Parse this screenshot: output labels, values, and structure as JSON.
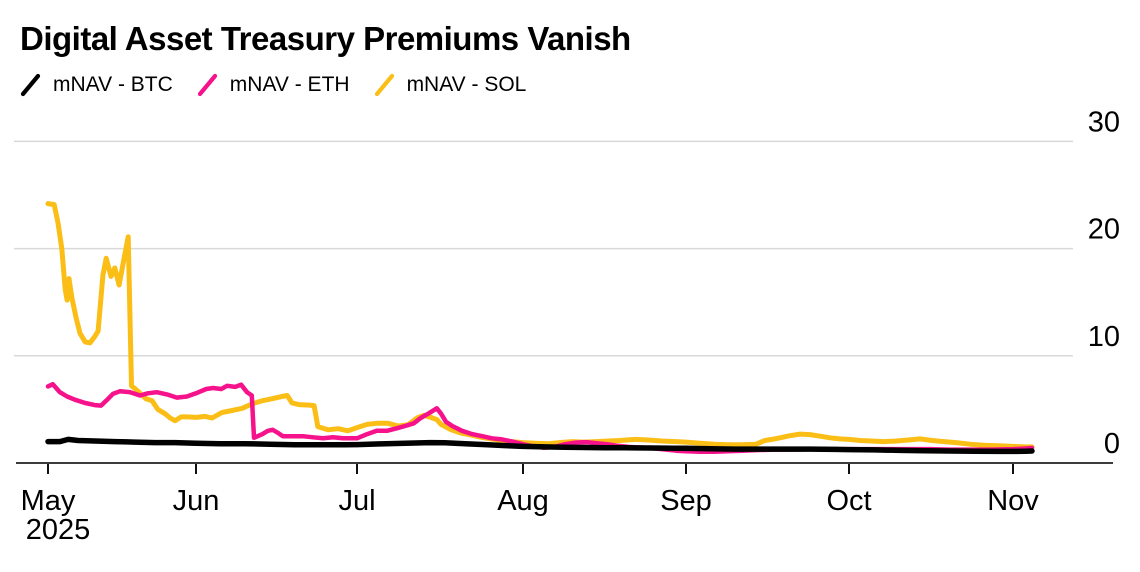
{
  "title": "Digital Asset Treasury Premiums Vanish",
  "legend": [
    {
      "label": "mNAV - BTC",
      "color": "#000000"
    },
    {
      "label": "mNAV - ETH",
      "color": "#f5128b"
    },
    {
      "label": "mNAV - SOL",
      "color": "#fbbe17"
    }
  ],
  "colors": {
    "background": "#ffffff",
    "gridline": "#d9d9d9",
    "axis_line": "#3c3c3c",
    "tick_mark": "#111111",
    "text": "#000000"
  },
  "chart_data": {
    "type": "line",
    "title": "Digital Asset Treasury Premiums Vanish",
    "x_axis": {
      "tick_labels": [
        "May",
        "Jun",
        "Jul",
        "Aug",
        "Sep",
        "Oct",
        "Nov"
      ],
      "year_label": "2025",
      "tick_days": [
        0,
        31,
        61,
        92,
        123,
        153,
        184
      ],
      "start_date": "2025-05-01",
      "end_date": "2025-11-04",
      "grid": false
    },
    "y_axis": {
      "ticks": [
        0,
        10,
        20,
        30
      ],
      "range": [
        0,
        30
      ],
      "side": "right",
      "grid": true
    },
    "legend_position": "top-left",
    "series": [
      {
        "name": "mNAV - BTC",
        "color": "#000000",
        "stroke_width": 5.5,
        "points": [
          [
            0,
            2
          ],
          [
            2.5,
            2
          ],
          [
            4.2,
            2.2
          ],
          [
            6.3,
            2.1
          ],
          [
            9.8,
            2.05
          ],
          [
            14,
            2
          ],
          [
            18.2,
            1.95
          ],
          [
            22.4,
            1.9
          ],
          [
            26.6,
            1.9
          ],
          [
            31,
            1.85
          ],
          [
            35.5,
            1.8
          ],
          [
            40.1,
            1.8
          ],
          [
            44.8,
            1.75
          ],
          [
            49.4,
            1.7
          ],
          [
            54.1,
            1.7
          ],
          [
            58.8,
            1.7
          ],
          [
            61,
            1.72
          ],
          [
            65.3,
            1.78
          ],
          [
            70,
            1.85
          ],
          [
            74.6,
            1.9
          ],
          [
            77.4,
            1.88
          ],
          [
            81.2,
            1.8
          ],
          [
            84.9,
            1.72
          ],
          [
            88.7,
            1.62
          ],
          [
            92,
            1.55
          ],
          [
            96.2,
            1.5
          ],
          [
            100,
            1.47
          ],
          [
            103.8,
            1.45
          ],
          [
            107.6,
            1.42
          ],
          [
            111.4,
            1.42
          ],
          [
            116.2,
            1.4
          ],
          [
            120.9,
            1.38
          ],
          [
            123,
            1.38
          ],
          [
            127.4,
            1.32
          ],
          [
            132,
            1.3
          ],
          [
            136.6,
            1.3
          ],
          [
            141.2,
            1.3
          ],
          [
            145.8,
            1.3
          ],
          [
            150.4,
            1.27
          ],
          [
            153,
            1.25
          ],
          [
            157.9,
            1.22
          ],
          [
            162.6,
            1.18
          ],
          [
            167.4,
            1.15
          ],
          [
            172.1,
            1.12
          ],
          [
            176.8,
            1.1
          ],
          [
            181.5,
            1.08
          ],
          [
            184,
            1.08
          ],
          [
            186.3,
            1.1
          ],
          [
            187.6,
            1.12
          ]
        ]
      },
      {
        "name": "mNAV - ETH",
        "color": "#f5128b",
        "stroke_width": 4.5,
        "points": [
          [
            0,
            7.15
          ],
          [
            1,
            7.35
          ],
          [
            2.5,
            6.6
          ],
          [
            4,
            6.2
          ],
          [
            5.7,
            5.9
          ],
          [
            7.8,
            5.6
          ],
          [
            9.8,
            5.4
          ],
          [
            11.1,
            5.35
          ],
          [
            12.6,
            6
          ],
          [
            13.6,
            6.45
          ],
          [
            15.1,
            6.7
          ],
          [
            17.2,
            6.6
          ],
          [
            19.3,
            6.3
          ],
          [
            20.9,
            6.5
          ],
          [
            22.8,
            6.6
          ],
          [
            24.9,
            6.4
          ],
          [
            27,
            6.1
          ],
          [
            29.1,
            6.2
          ],
          [
            31,
            6.5
          ],
          [
            32.9,
            6.9
          ],
          [
            34.2,
            7
          ],
          [
            35.7,
            6.9
          ],
          [
            36.8,
            7.2
          ],
          [
            38.3,
            7.1
          ],
          [
            39.4,
            7.3
          ],
          [
            40.5,
            6.6
          ],
          [
            41.4,
            6.3
          ],
          [
            41.8,
            2.35
          ],
          [
            42.5,
            2.5
          ],
          [
            43.4,
            2.7
          ],
          [
            44.4,
            3
          ],
          [
            45.3,
            3.1
          ],
          [
            46.3,
            2.8
          ],
          [
            47.2,
            2.5
          ],
          [
            49.1,
            2.5
          ],
          [
            50.9,
            2.5
          ],
          [
            52.8,
            2.4
          ],
          [
            54.7,
            2.3
          ],
          [
            56.5,
            2.4
          ],
          [
            58.4,
            2.3
          ],
          [
            61,
            2.3
          ],
          [
            62.9,
            2.7
          ],
          [
            64.7,
            3
          ],
          [
            66.6,
            3
          ],
          [
            68.5,
            3.25
          ],
          [
            70.3,
            3.5
          ],
          [
            71.6,
            3.7
          ],
          [
            72.9,
            4.2
          ],
          [
            74.3,
            4.6
          ],
          [
            75.9,
            5.1
          ],
          [
            76.7,
            4.6
          ],
          [
            77.6,
            3.85
          ],
          [
            78.8,
            3.45
          ],
          [
            80.6,
            3
          ],
          [
            82.5,
            2.7
          ],
          [
            84.4,
            2.5
          ],
          [
            86.2,
            2.3
          ],
          [
            88.1,
            2.2
          ],
          [
            90,
            2
          ],
          [
            92,
            1.75
          ],
          [
            94,
            1.55
          ],
          [
            96,
            1.42
          ],
          [
            98,
            1.5
          ],
          [
            100,
            1.75
          ],
          [
            102,
            1.9
          ],
          [
            104,
            1.95
          ],
          [
            106,
            1.85
          ],
          [
            108,
            1.75
          ],
          [
            110,
            1.6
          ],
          [
            112,
            1.5
          ],
          [
            114,
            1.45
          ],
          [
            116,
            1.4
          ],
          [
            118.4,
            1.3
          ],
          [
            121.1,
            1.15
          ],
          [
            123,
            1.1
          ],
          [
            125.6,
            1.05
          ],
          [
            128.2,
            1.05
          ],
          [
            130.7,
            1.1
          ],
          [
            133.3,
            1.15
          ],
          [
            135.9,
            1.2
          ],
          [
            139.4,
            1.25
          ],
          [
            143.1,
            1.25
          ],
          [
            146.8,
            1.3
          ],
          [
            150.4,
            1.3
          ],
          [
            153,
            1.3
          ],
          [
            157,
            1.3
          ],
          [
            160.8,
            1.3
          ],
          [
            164.5,
            1.3
          ],
          [
            168.3,
            1.3
          ],
          [
            172.1,
            1.25
          ],
          [
            175.9,
            1.25
          ],
          [
            179.7,
            1.25
          ],
          [
            184,
            1.3
          ],
          [
            186.3,
            1.35
          ],
          [
            187.6,
            1.4
          ]
        ]
      },
      {
        "name": "mNAV - SOL",
        "color": "#fbbe17",
        "stroke_width": 5,
        "points": [
          [
            0,
            24.2
          ],
          [
            1.3,
            24.1
          ],
          [
            2.1,
            22.4
          ],
          [
            2.9,
            20
          ],
          [
            3.6,
            16.2
          ],
          [
            4,
            15.2
          ],
          [
            4.4,
            17.2
          ],
          [
            5,
            15.4
          ],
          [
            5.9,
            13.5
          ],
          [
            6.7,
            12.1
          ],
          [
            7.8,
            11.3
          ],
          [
            8.8,
            11.2
          ],
          [
            9.8,
            11.8
          ],
          [
            10.5,
            12.3
          ],
          [
            11.5,
            17.5
          ],
          [
            12.2,
            19.1
          ],
          [
            13.2,
            17.4
          ],
          [
            14,
            18.2
          ],
          [
            14.9,
            16.6
          ],
          [
            15.9,
            19
          ],
          [
            16.8,
            21.1
          ],
          [
            17.5,
            7.2
          ],
          [
            18.3,
            6.9
          ],
          [
            19.3,
            6.5
          ],
          [
            20.5,
            6
          ],
          [
            21.8,
            5.8
          ],
          [
            23,
            5
          ],
          [
            24.5,
            4.6
          ],
          [
            25.6,
            4.2
          ],
          [
            26.6,
            3.95
          ],
          [
            27.9,
            4.3
          ],
          [
            29.3,
            4.3
          ],
          [
            31,
            4.25
          ],
          [
            32.7,
            4.35
          ],
          [
            34,
            4.2
          ],
          [
            35.8,
            4.7
          ],
          [
            37.7,
            4.9
          ],
          [
            39.6,
            5.1
          ],
          [
            41.4,
            5.5
          ],
          [
            43.3,
            5.8
          ],
          [
            45.2,
            6
          ],
          [
            47,
            6.2
          ],
          [
            48,
            6.3
          ],
          [
            48.9,
            5.6
          ],
          [
            50.2,
            5.45
          ],
          [
            52.1,
            5.4
          ],
          [
            53,
            5.35
          ],
          [
            53.7,
            3.4
          ],
          [
            55.6,
            3.1
          ],
          [
            57.5,
            3.2
          ],
          [
            59.3,
            3
          ],
          [
            61,
            3.3
          ],
          [
            62.9,
            3.6
          ],
          [
            64.7,
            3.7
          ],
          [
            66.8,
            3.7
          ],
          [
            68.7,
            3.45
          ],
          [
            70.5,
            3.55
          ],
          [
            72.2,
            4.2
          ],
          [
            73.5,
            4.45
          ],
          [
            74.8,
            4.25
          ],
          [
            75.9,
            4.05
          ],
          [
            76.7,
            3.6
          ],
          [
            78.6,
            3.1
          ],
          [
            80.4,
            2.8
          ],
          [
            82.3,
            2.6
          ],
          [
            84.2,
            2.4
          ],
          [
            86,
            2.25
          ],
          [
            87.9,
            2.1
          ],
          [
            89.8,
            2
          ],
          [
            92,
            1.9
          ],
          [
            94.3,
            1.85
          ],
          [
            96.8,
            1.8
          ],
          [
            99,
            1.9
          ],
          [
            101.3,
            2
          ],
          [
            103.6,
            1.95
          ],
          [
            105.9,
            2
          ],
          [
            108.2,
            2.05
          ],
          [
            110.4,
            2.1
          ],
          [
            113.3,
            2.2
          ],
          [
            115.8,
            2.15
          ],
          [
            118.4,
            2.05
          ],
          [
            121.1,
            2
          ],
          [
            123,
            1.95
          ],
          [
            125.6,
            1.85
          ],
          [
            128.2,
            1.75
          ],
          [
            130.7,
            1.7
          ],
          [
            133.3,
            1.7
          ],
          [
            135.9,
            1.75
          ],
          [
            137.5,
            2.1
          ],
          [
            138.8,
            2.2
          ],
          [
            140.3,
            2.35
          ],
          [
            142.1,
            2.55
          ],
          [
            144,
            2.7
          ],
          [
            145.8,
            2.65
          ],
          [
            147.7,
            2.5
          ],
          [
            149.5,
            2.35
          ],
          [
            151.3,
            2.25
          ],
          [
            153,
            2.2
          ],
          [
            155.1,
            2.1
          ],
          [
            157.3,
            2.05
          ],
          [
            159.6,
            2
          ],
          [
            161.9,
            2.05
          ],
          [
            164.2,
            2.15
          ],
          [
            166.4,
            2.25
          ],
          [
            168.7,
            2.1
          ],
          [
            171,
            2
          ],
          [
            173.2,
            1.9
          ],
          [
            175.9,
            1.75
          ],
          [
            178.5,
            1.65
          ],
          [
            181.2,
            1.6
          ],
          [
            184,
            1.55
          ],
          [
            186.3,
            1.5
          ],
          [
            187.6,
            1.5
          ]
        ]
      }
    ]
  }
}
